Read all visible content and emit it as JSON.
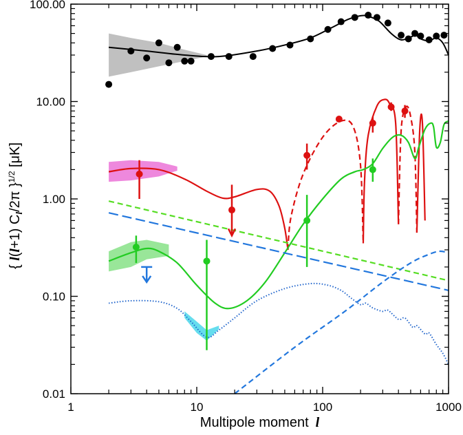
{
  "chart_data": {
    "type": "line",
    "xscale": "log",
    "yscale": "log",
    "xlim": [
      1,
      1000
    ],
    "ylim": [
      0.01,
      100
    ],
    "xlabel": "Multipole moment",
    "xlabel_symbol": "l",
    "ylabel": "{ l(l+1) C_l / 2π }^(1/2) [μK]",
    "ylabel_parts": {
      "open": "{ ",
      "l1": "l",
      "paren_open": "(",
      "l2": "l",
      "plus_one": "+1) C",
      "sub": "l",
      "two_pi": "/2π }",
      "exponent": "1/2",
      "unit": " [μK]"
    },
    "xticks": [
      {
        "value": 1,
        "label": "1"
      },
      {
        "value": 10,
        "label": "10"
      },
      {
        "value": 100,
        "label": "100"
      },
      {
        "value": 1000,
        "label": "1000"
      }
    ],
    "yticks": [
      {
        "value": 0.01,
        "label": "0.01"
      },
      {
        "value": 0.1,
        "label": "0.10"
      },
      {
        "value": 1,
        "label": "1.00"
      },
      {
        "value": 10,
        "label": "10.00"
      },
      {
        "value": 100,
        "label": "100.00"
      }
    ],
    "bands": [
      {
        "name": "TT cosmic variance",
        "color": "#c0c0c0",
        "upper": [
          [
            2,
            50
          ],
          [
            3,
            45
          ],
          [
            5,
            40
          ],
          [
            8,
            34
          ],
          [
            12,
            30
          ]
        ],
        "lower": [
          [
            12,
            29
          ],
          [
            8,
            26
          ],
          [
            5,
            23
          ],
          [
            3,
            20
          ],
          [
            2,
            18
          ]
        ]
      },
      {
        "name": "EE cosmic variance",
        "color": "#ee88dd",
        "upper": [
          [
            2,
            2.4
          ],
          [
            3,
            2.5
          ],
          [
            5,
            2.4
          ],
          [
            7,
            2.15
          ]
        ],
        "lower": [
          [
            7,
            1.95
          ],
          [
            5,
            1.7
          ],
          [
            3,
            1.55
          ],
          [
            2,
            1.5
          ]
        ]
      },
      {
        "name": "TE cosmic variance",
        "color": "#99e699",
        "upper": [
          [
            2,
            0.29
          ],
          [
            3,
            0.36
          ],
          [
            4,
            0.38
          ],
          [
            6,
            0.34
          ]
        ],
        "lower": [
          [
            6,
            0.26
          ],
          [
            4,
            0.24
          ],
          [
            3,
            0.2
          ],
          [
            2,
            0.18
          ]
        ]
      },
      {
        "name": "BB cosmic variance",
        "color": "#66ddee",
        "upper": [
          [
            8,
            0.07
          ],
          [
            10,
            0.055
          ],
          [
            12,
            0.045
          ],
          [
            15,
            0.05
          ]
        ],
        "lower": [
          [
            15,
            0.046
          ],
          [
            12,
            0.035
          ],
          [
            10,
            0.042
          ],
          [
            8,
            0.06
          ]
        ]
      }
    ],
    "series": [
      {
        "name": "TT model",
        "color": "#000000",
        "style": "solid",
        "width": 2,
        "points": [
          [
            2,
            36
          ],
          [
            4,
            33
          ],
          [
            8,
            30
          ],
          [
            15,
            29
          ],
          [
            30,
            33
          ],
          [
            50,
            38
          ],
          [
            80,
            45
          ],
          [
            120,
            58
          ],
          [
            160,
            70
          ],
          [
            200,
            76
          ],
          [
            230,
            75
          ],
          [
            280,
            67
          ],
          [
            350,
            50
          ],
          [
            420,
            43
          ],
          [
            500,
            46
          ],
          [
            550,
            48
          ],
          [
            600,
            44
          ],
          [
            700,
            42
          ],
          [
            800,
            45
          ],
          [
            900,
            40
          ],
          [
            1000,
            30
          ]
        ]
      },
      {
        "name": "EE model",
        "color": "#dd1111",
        "style": "solid",
        "width": 2.2,
        "points": [
          [
            2,
            1.9
          ],
          [
            3,
            2.05
          ],
          [
            5,
            2.0
          ],
          [
            8,
            1.6
          ],
          [
            12,
            1.2
          ],
          [
            16,
            1.02
          ],
          [
            20,
            1.05
          ],
          [
            30,
            1.25
          ],
          [
            38,
            1.2
          ],
          [
            45,
            0.85
          ],
          [
            50,
            0.5
          ],
          [
            53,
            0.3
          ]
        ]
      },
      {
        "name": "EE model (negative)",
        "color": "#dd1111",
        "style": "dashed",
        "width": 2.2,
        "points": [
          [
            53,
            0.3
          ],
          [
            56,
            0.65
          ],
          [
            70,
            1.8
          ],
          [
            100,
            4.3
          ],
          [
            140,
            6.3
          ],
          [
            175,
            5.5
          ],
          [
            200,
            2.2
          ],
          [
            210,
            0.35
          ]
        ]
      },
      {
        "name": "EE model (second peak)",
        "color": "#dd1111",
        "style": "solid",
        "width": 2.2,
        "points": [
          [
            210,
            0.35
          ],
          [
            215,
            1.5
          ],
          [
            230,
            4.5
          ],
          [
            270,
            9.0
          ],
          [
            310,
            10.5
          ],
          [
            340,
            9.5
          ],
          [
            380,
            6.0
          ],
          [
            400,
            0.55
          ]
        ]
      },
      {
        "name": "EE model (negative, high l)",
        "color": "#dd1111",
        "style": "dashed",
        "width": 2.2,
        "points": [
          [
            400,
            0.55
          ],
          [
            420,
            5.0
          ],
          [
            460,
            8.8
          ],
          [
            500,
            7.0
          ],
          [
            540,
            3.0
          ],
          [
            560,
            0.45
          ]
        ]
      },
      {
        "name": "EE model (third peak)",
        "color": "#dd1111",
        "style": "solid",
        "width": 2.2,
        "points": [
          [
            560,
            0.45
          ],
          [
            590,
            5.0
          ],
          [
            620,
            6.0
          ],
          [
            650,
            0.6
          ]
        ]
      },
      {
        "name": "TE model",
        "color": "#22cc22",
        "style": "solid",
        "width": 2.2,
        "points": [
          [
            2,
            0.23
          ],
          [
            3,
            0.28
          ],
          [
            4,
            0.31
          ],
          [
            5,
            0.29
          ],
          [
            7,
            0.22
          ],
          [
            10,
            0.13
          ],
          [
            14,
            0.085
          ],
          [
            18,
            0.075
          ],
          [
            25,
            0.09
          ],
          [
            35,
            0.14
          ],
          [
            50,
            0.28
          ],
          [
            70,
            0.55
          ],
          [
            100,
            1.0
          ],
          [
            140,
            1.6
          ],
          [
            180,
            1.9
          ],
          [
            210,
            2.0
          ],
          [
            250,
            2.3
          ],
          [
            300,
            3.3
          ],
          [
            360,
            4.3
          ],
          [
            420,
            4.5
          ],
          [
            480,
            3.8
          ],
          [
            540,
            2.6
          ],
          [
            580,
            3.4
          ],
          [
            650,
            5.2
          ],
          [
            720,
            6.0
          ],
          [
            760,
            5.5
          ],
          [
            800,
            3.4
          ],
          [
            860,
            3.8
          ],
          [
            920,
            5.8
          ],
          [
            1000,
            6.3
          ]
        ]
      },
      {
        "name": "Foreground (green dashed)",
        "color": "#55dd22",
        "style": "dashed",
        "width": 2.2,
        "points": [
          [
            2,
            0.95
          ],
          [
            1000,
            0.145
          ]
        ]
      },
      {
        "name": "Foreground (blue long-dashed)",
        "color": "#2277dd",
        "style": "longdash",
        "width": 2.2,
        "points": [
          [
            2,
            0.72
          ],
          [
            1000,
            0.115
          ]
        ]
      },
      {
        "name": "BB model (dotted)",
        "color": "#2266cc",
        "style": "dotted",
        "width": 2,
        "points": [
          [
            2,
            0.085
          ],
          [
            3,
            0.09
          ],
          [
            5,
            0.088
          ],
          [
            7,
            0.075
          ],
          [
            9,
            0.055
          ],
          [
            12,
            0.038
          ],
          [
            15,
            0.045
          ],
          [
            20,
            0.06
          ],
          [
            30,
            0.09
          ],
          [
            50,
            0.12
          ],
          [
            80,
            0.135
          ],
          [
            110,
            0.13
          ],
          [
            140,
            0.115
          ],
          [
            170,
            0.095
          ],
          [
            200,
            0.082
          ],
          [
            220,
            0.085
          ],
          [
            250,
            0.076
          ],
          [
            300,
            0.07
          ],
          [
            330,
            0.072
          ],
          [
            400,
            0.058
          ],
          [
            450,
            0.06
          ],
          [
            520,
            0.048
          ],
          [
            560,
            0.05
          ],
          [
            650,
            0.041
          ],
          [
            700,
            0.042
          ],
          [
            800,
            0.032
          ],
          [
            900,
            0.026
          ],
          [
            1000,
            0.02
          ]
        ]
      },
      {
        "name": "Lensing B-mode (dashed)",
        "color": "#2277dd",
        "style": "dashed",
        "width": 2.2,
        "points": [
          [
            20,
            0.01
          ],
          [
            60,
            0.03
          ],
          [
            150,
            0.07
          ],
          [
            300,
            0.14
          ],
          [
            500,
            0.22
          ],
          [
            700,
            0.27
          ],
          [
            850,
            0.29
          ],
          [
            1000,
            0.28
          ]
        ]
      }
    ],
    "data_points": [
      {
        "name": "TT data",
        "color": "#000000",
        "points": [
          {
            "x": 2,
            "y": 15
          },
          {
            "x": 3,
            "y": 33
          },
          {
            "x": 4,
            "y": 28
          },
          {
            "x": 5,
            "y": 40
          },
          {
            "x": 6,
            "y": 25
          },
          {
            "x": 7,
            "y": 36
          },
          {
            "x": 8,
            "y": 26
          },
          {
            "x": 9,
            "y": 26
          },
          {
            "x": 13,
            "y": 29
          },
          {
            "x": 18,
            "y": 29
          },
          {
            "x": 28,
            "y": 29
          },
          {
            "x": 40,
            "y": 35
          },
          {
            "x": 55,
            "y": 38
          },
          {
            "x": 80,
            "y": 44
          },
          {
            "x": 110,
            "y": 55
          },
          {
            "x": 140,
            "y": 66
          },
          {
            "x": 180,
            "y": 73
          },
          {
            "x": 230,
            "y": 77
          },
          {
            "x": 270,
            "y": 73
          },
          {
            "x": 330,
            "y": 64
          },
          {
            "x": 420,
            "y": 48
          },
          {
            "x": 480,
            "y": 44
          },
          {
            "x": 540,
            "y": 50
          },
          {
            "x": 600,
            "y": 47
          },
          {
            "x": 700,
            "y": 43
          },
          {
            "x": 800,
            "y": 47
          },
          {
            "x": 920,
            "y": 48
          }
        ]
      },
      {
        "name": "EE data",
        "color": "#dd1111",
        "points": [
          {
            "x": 3.5,
            "y": 1.8,
            "ylo": 1.0,
            "yhi": 2.5
          },
          {
            "x": 19,
            "y": 0.77,
            "ylo": 0.42,
            "yhi": 1.4,
            "arrow": true
          },
          {
            "x": 75,
            "y": 2.8,
            "ylo": 2.0,
            "yhi": 3.7
          },
          {
            "x": 135,
            "y": 6.6,
            "ylo": 6.2,
            "yhi": 7.0
          },
          {
            "x": 250,
            "y": 6.0,
            "ylo": 4.8,
            "yhi": 7.0
          },
          {
            "x": 350,
            "y": 8.8,
            "ylo": 8.0,
            "yhi": 9.8
          },
          {
            "x": 450,
            "y": 8.0,
            "ylo": 6.8,
            "yhi": 9.2
          }
        ]
      },
      {
        "name": "TE data",
        "color": "#22cc22",
        "points": [
          {
            "x": 3.3,
            "y": 0.32,
            "ylo": 0.22,
            "yhi": 0.42
          },
          {
            "x": 12,
            "y": 0.23,
            "ylo": 0.028,
            "yhi": 0.38
          },
          {
            "x": 75,
            "y": 0.6,
            "ylo": 0.2,
            "yhi": 1.1
          },
          {
            "x": 250,
            "y": 2.0,
            "ylo": 1.5,
            "yhi": 2.6
          }
        ]
      },
      {
        "name": "BB upper limit",
        "color": "#2277dd",
        "points": [
          {
            "x": 4,
            "y": 0.2,
            "limit": "upper"
          }
        ]
      }
    ]
  }
}
